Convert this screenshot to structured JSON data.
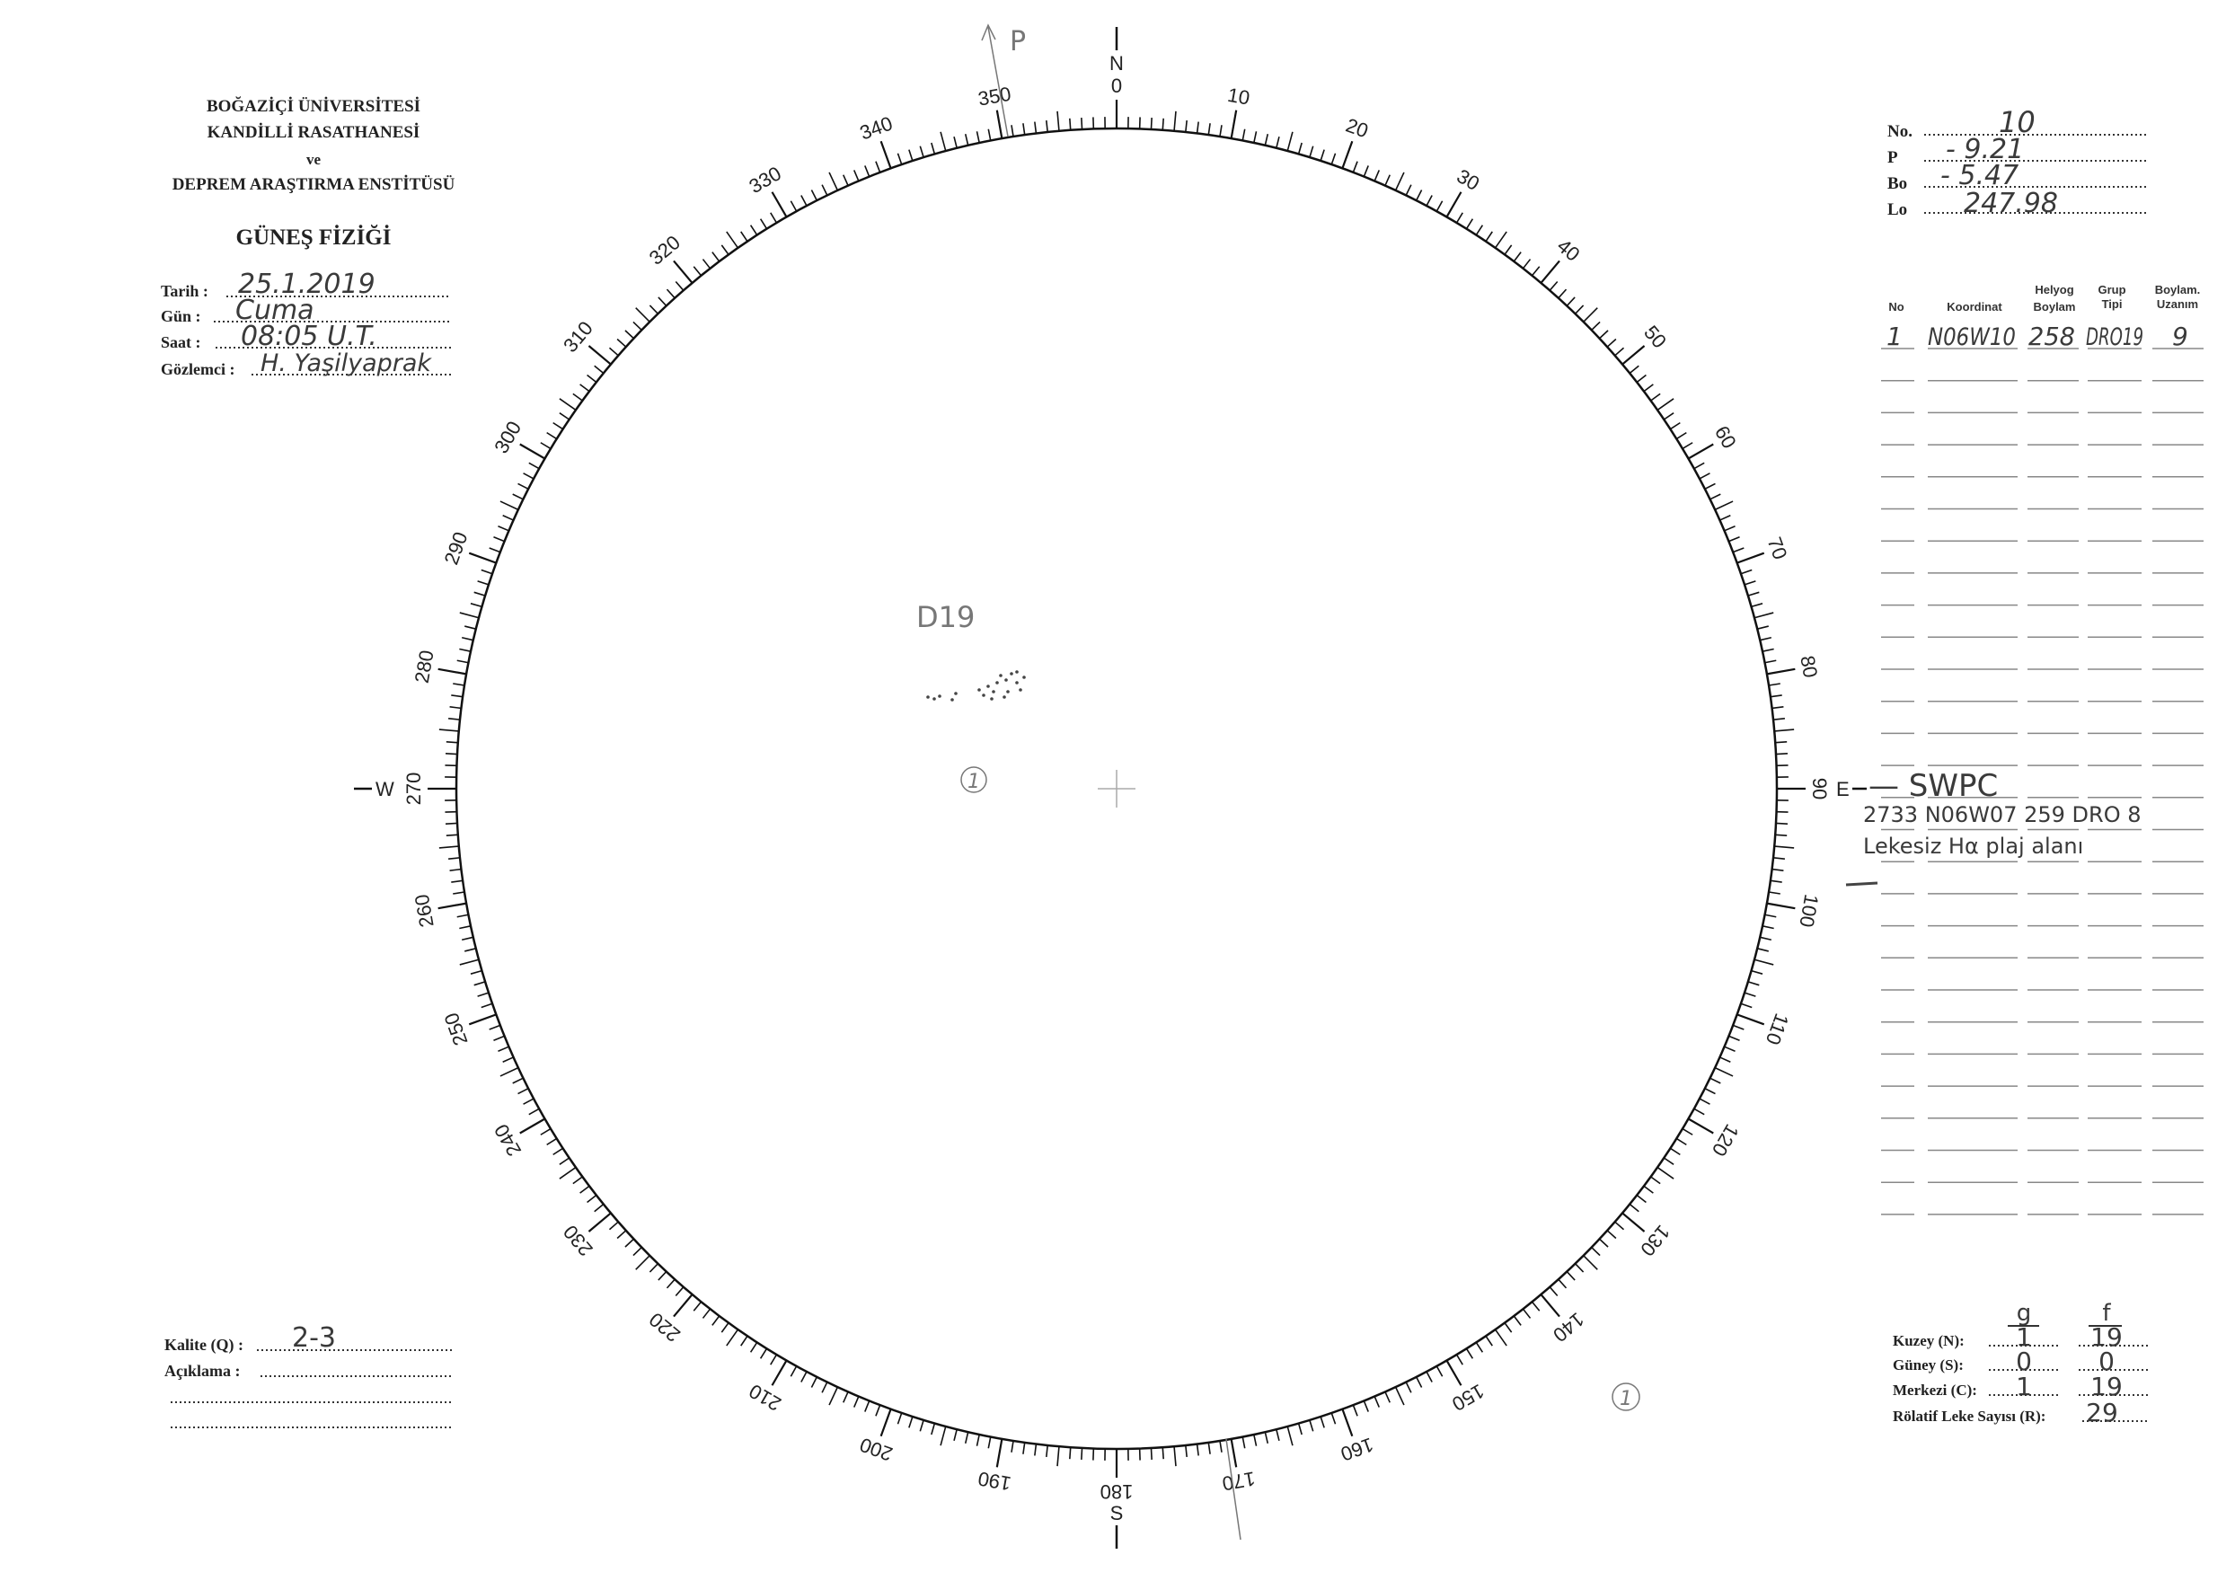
{
  "header": {
    "line1": "BOĞAZİÇİ ÜNİVERSİTESİ",
    "line2": "KANDİLLİ RASATHANESİ",
    "line3": "ve",
    "line4": "DEPREM ARAŞTIRMA ENSTİTÜSÜ",
    "title": "GÜNEŞ FİZİĞİ"
  },
  "observation": {
    "date_label": "Tarih :",
    "date_value": "25.1.2019",
    "day_label": "Gün :",
    "day_value": "Cuma",
    "time_label": "Saat :",
    "time_value": "08:05 U.T.",
    "observer_label": "Gözlemci :",
    "observer_value": "H. Yaşilyaprak"
  },
  "parameters": {
    "no_label": "No.",
    "no_value": "10",
    "p_label": "P",
    "p_value": "- 9.21",
    "bo_label": "Bo",
    "bo_value": "- 5.47",
    "lo_label": "Lo",
    "lo_value": "247.98"
  },
  "table": {
    "headers": {
      "no": "No",
      "koordinat": "Koordinat",
      "helyog1": "Helyog",
      "helyog2": "Boylam",
      "grup1": "Grup",
      "grup2": "Tipi",
      "uzanim1": "Boylam.",
      "uzanim2": "Uzanım"
    },
    "rows": [
      {
        "no": "1",
        "koordinat": "N06W10",
        "boylam": "258",
        "tip": "DRO19",
        "uzanim": "9"
      }
    ]
  },
  "notes": {
    "swpc": "— SWPC",
    "swpc_line": "2733 N06W07 259 DRO 8",
    "plage_line": "Lekesiz Hα plaj alanı"
  },
  "dial": {
    "north": "N",
    "south": "S",
    "east": "E",
    "west": "W",
    "labels": [
      "0",
      "10",
      "20",
      "30",
      "40",
      "50",
      "60",
      "70",
      "80",
      "90",
      "100",
      "110",
      "120",
      "130",
      "140",
      "150",
      "160",
      "170",
      "180",
      "190",
      "200",
      "210",
      "220",
      "230",
      "240",
      "250",
      "260",
      "270",
      "280",
      "290",
      "300",
      "310",
      "320",
      "330",
      "340",
      "350"
    ]
  },
  "sketch": {
    "group_label": "D19",
    "group_number": "1",
    "group_number_2": "1",
    "axis_label": "P"
  },
  "quality": {
    "kalite_label": "Kalite (Q) :",
    "kalite_value": "2-3",
    "aciklama_label": "Açıklama :"
  },
  "counts": {
    "g_header": "g",
    "f_header": "f",
    "north_label": "Kuzey (N):",
    "north_g": "1",
    "north_f": "19",
    "south_label": "Güney (S):",
    "south_g": "0",
    "south_f": "0",
    "center_label": "Merkezi (C):",
    "center_g": "1",
    "center_f": "19",
    "r_label": "Rölatif Leke Sayısı (R):",
    "r_value": "29"
  },
  "colors": {
    "ink": "#222222",
    "pencil": "#3a3a3a",
    "paper": "#ffffff"
  }
}
